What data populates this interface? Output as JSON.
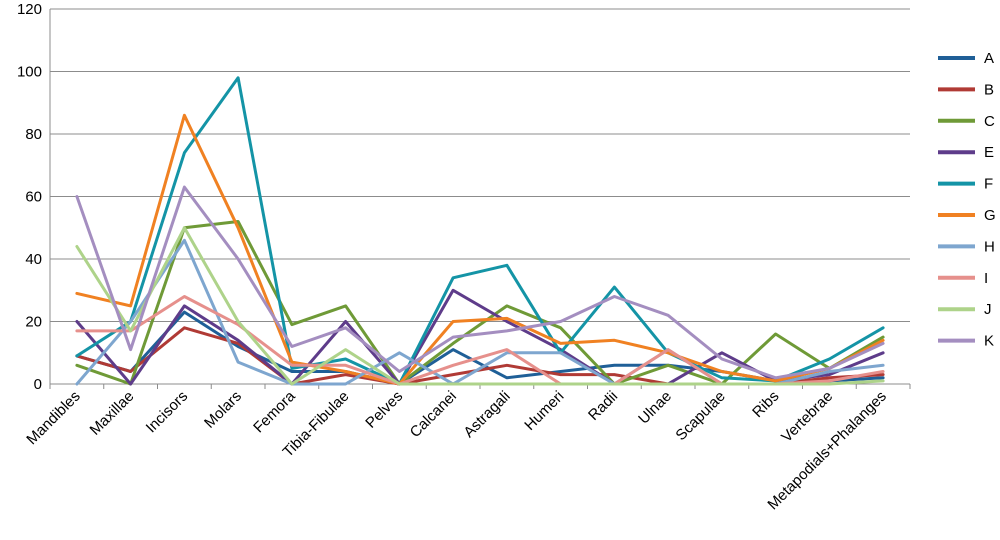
{
  "chart_data": {
    "type": "line",
    "title": "",
    "xlabel": "",
    "ylabel": "",
    "ylim": [
      0,
      120
    ],
    "yticks": [
      0,
      20,
      40,
      60,
      80,
      100,
      120
    ],
    "grid": "horizontal",
    "legend_position": "right",
    "categories": [
      "Mandibles",
      "Maxillae",
      "Incisors",
      "Molars",
      "Femora",
      "Tibia-Fibulae",
      "Pelves",
      "Calcanei",
      "Astragali",
      "Humeri",
      "Radii",
      "Ulnae",
      "Scapulae",
      "Ribs",
      "Vertebrae",
      "Metapodials+Phalanges"
    ],
    "series": [
      {
        "name": "A",
        "color": "#1f5f97",
        "values": [
          9,
          4,
          23,
          12,
          4,
          4,
          0,
          11,
          2,
          4,
          6,
          6,
          4,
          1,
          1,
          2
        ]
      },
      {
        "name": "B",
        "color": "#b03a35",
        "values": [
          9,
          4,
          18,
          13,
          0,
          3,
          0,
          3,
          6,
          3,
          3,
          0,
          0,
          0,
          2,
          3
        ]
      },
      {
        "name": "C",
        "color": "#6f9a37",
        "values": [
          6,
          0,
          50,
          52,
          19,
          25,
          0,
          13,
          25,
          18,
          0,
          6,
          0,
          16,
          5,
          15
        ]
      },
      {
        "name": "E",
        "color": "#5e3c8a",
        "values": [
          20,
          0,
          25,
          14,
          0,
          20,
          0,
          30,
          20,
          11,
          0,
          0,
          10,
          1,
          3,
          10
        ]
      },
      {
        "name": "F",
        "color": "#1494a6",
        "values": [
          9,
          20,
          74,
          98,
          5,
          8,
          0,
          34,
          38,
          10,
          31,
          10,
          2,
          1,
          8,
          18
        ]
      },
      {
        "name": "G",
        "color": "#f08122",
        "values": [
          29,
          25,
          86,
          50,
          7,
          4,
          0,
          20,
          21,
          13,
          14,
          10,
          4,
          1,
          5,
          14
        ]
      },
      {
        "name": "H",
        "color": "#7ea6cf",
        "values": [
          0,
          20,
          46,
          7,
          0,
          0,
          10,
          0,
          10,
          10,
          0,
          11,
          0,
          0,
          4,
          6
        ]
      },
      {
        "name": "I",
        "color": "#e6908c",
        "values": [
          17,
          17,
          28,
          19,
          6,
          6,
          0,
          6,
          11,
          0,
          0,
          11,
          0,
          0,
          1,
          4
        ]
      },
      {
        "name": "J",
        "color": "#aed38a",
        "values": [
          44,
          17,
          50,
          20,
          0,
          11,
          0,
          0,
          0,
          0,
          0,
          0,
          0,
          0,
          0,
          1
        ]
      },
      {
        "name": "K",
        "color": "#a48ec0",
        "values": [
          60,
          11,
          63,
          40,
          12,
          18,
          4,
          15,
          17,
          20,
          28,
          22,
          8,
          2,
          5,
          13
        ]
      }
    ]
  }
}
